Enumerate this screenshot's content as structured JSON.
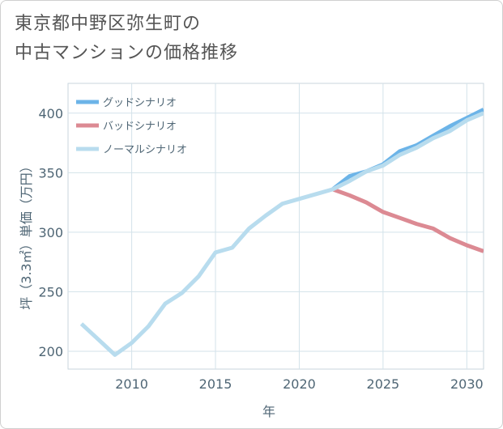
{
  "title_line1": "東京都中野区弥生町の",
  "title_line2": "中古マンションの価格推移",
  "chart_data": {
    "type": "line",
    "title": "東京都中野区弥生町の中古マンションの価格推移",
    "xlabel": "年",
    "ylabel": "坪（3.3㎡）単価（万円）",
    "xlim": [
      2006.2,
      2031
    ],
    "ylim": [
      185,
      425
    ],
    "xticks": [
      2010,
      2015,
      2020,
      2025,
      2030
    ],
    "yticks": [
      200,
      250,
      300,
      350,
      400
    ],
    "grid": true,
    "legend_position": "top-left",
    "series": [
      {
        "name": "グッドシナリオ",
        "color": "#6cb4e8",
        "x": [
          2022,
          2023,
          2024,
          2025,
          2026,
          2027,
          2028,
          2029,
          2030,
          2031
        ],
        "y": [
          336,
          347,
          351,
          357,
          368,
          373,
          381,
          389,
          396,
          403
        ]
      },
      {
        "name": "バッドシナリオ",
        "color": "#dc8a93",
        "x": [
          2022,
          2023,
          2024,
          2025,
          2026,
          2027,
          2028,
          2029,
          2030,
          2031
        ],
        "y": [
          336,
          331,
          325,
          317,
          312,
          307,
          303,
          295,
          289,
          284
        ]
      },
      {
        "name": "ノーマルシナリオ",
        "color": "#b8dcee",
        "x": [
          2007,
          2008,
          2009,
          2010,
          2011,
          2012,
          2013,
          2014,
          2015,
          2016,
          2017,
          2018,
          2019,
          2020,
          2021,
          2022,
          2023,
          2024,
          2025,
          2026,
          2027,
          2028,
          2029,
          2030,
          2031
        ],
        "y": [
          223,
          210,
          197,
          207,
          221,
          240,
          249,
          263,
          283,
          287,
          303,
          314,
          324,
          328,
          332,
          336,
          343,
          351,
          356,
          365,
          371,
          379,
          385,
          394,
          400
        ]
      }
    ]
  }
}
